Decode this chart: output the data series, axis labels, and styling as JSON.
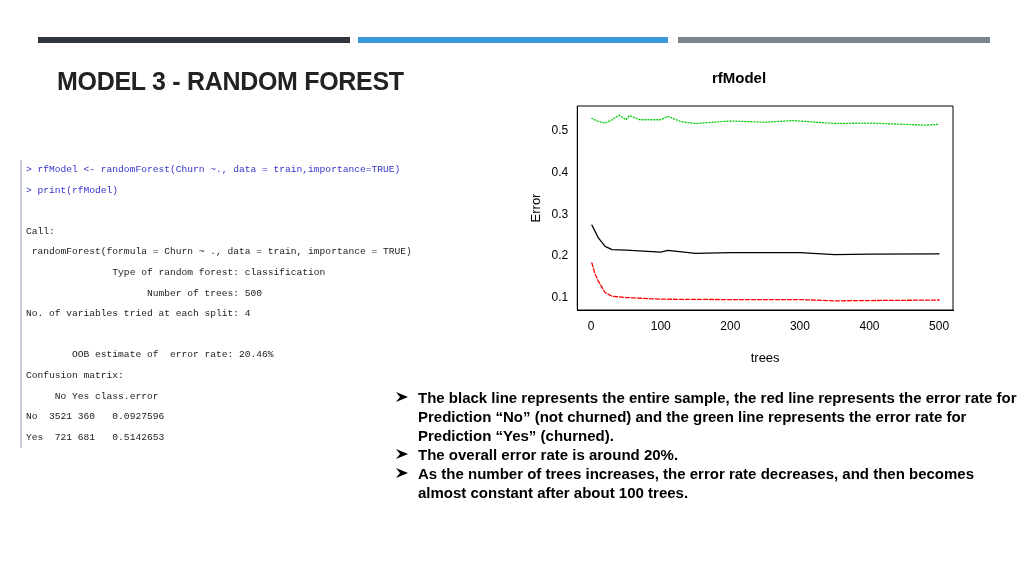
{
  "chart_data": {
    "type": "line",
    "title": "rfModel",
    "xlabel": "trees",
    "ylabel": "Error",
    "annotations": [
      "MODEL 3 - RANDOM FOREST",
      "> rfModel <- randomForest(Churn ~., data = train,importance=TRUE)\n> print(rfModel)\n\nCall:\n randomForest(formula = Churn ~ ., data = train, importance = TRUE)\n               Type of random forest: classification\n                     Number of trees: 500\nNo. of variables tried at each split: 4\n\n        OOB estimate of  error rate: 20.46%\nConfusion matrix:\n     No Yes class.error\nNo  3521 360   0.0927596\nYes  721 681   0.5142653",
      "The black line represents the entire sample, the red line represents the error rate for Prediction “No” (not churned) and the green line represents the error rate for Prediction “Yes” (churned).",
      "The overall error rate is around 20%.",
      "As the number of trees increases, the error rate decreases, and then becomes almost constant after about 100 trees."
    ],
    "series": [
      {
        "color": "#000000",
        "line_style": "solid",
        "x": [
          1,
          10,
          20,
          30,
          50,
          100,
          110,
          150,
          200,
          300,
          350,
          400,
          500
        ],
        "values": [
          0.274,
          0.244,
          0.223,
          0.215,
          0.214,
          0.209,
          0.213,
          0.206,
          0.208,
          0.208,
          0.203,
          0.204,
          0.205
        ]
      },
      {
        "color": "#ff0000",
        "line_style": "dashed",
        "x": [
          1,
          5,
          10,
          20,
          30,
          50,
          100,
          200,
          300,
          350,
          500
        ],
        "values": [
          0.183,
          0.159,
          0.14,
          0.112,
          0.103,
          0.1,
          0.096,
          0.095,
          0.095,
          0.092,
          0.094
        ]
      },
      {
        "color": "#00cc00",
        "line_style": "dotted",
        "x": [
          1,
          10,
          20,
          30,
          40,
          50,
          55,
          70,
          100,
          110,
          130,
          150,
          200,
          250,
          290,
          350,
          400,
          450,
          480,
          500
        ],
        "values": [
          0.53,
          0.523,
          0.519,
          0.527,
          0.538,
          0.527,
          0.537,
          0.527,
          0.527,
          0.535,
          0.522,
          0.518,
          0.524,
          0.521,
          0.525,
          0.518,
          0.519,
          0.516,
          0.514,
          0.516
        ]
      }
    ],
    "xlim": [
      -20,
      520
    ],
    "xticks": [
      0,
      100,
      200,
      300,
      400,
      500
    ],
    "ylim": [
      0.07,
      0.56
    ],
    "yticks": [
      0.1,
      0.2,
      0.3,
      0.4,
      0.5
    ],
    "grid": false,
    "legend": false,
    "marker": "none"
  }
}
